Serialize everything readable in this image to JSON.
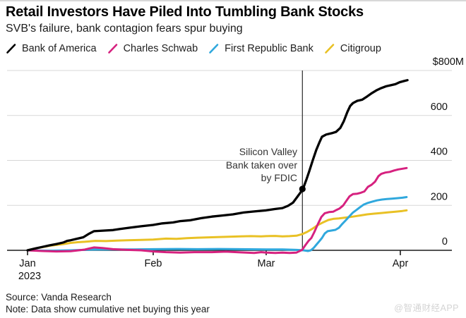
{
  "header": {
    "title": "Retail Investors Have Piled Into Tumbling Bank Stocks",
    "subtitle": "SVB's failure, bank contagion fears spur buying"
  },
  "footer": {
    "source": "Source: Vanda Research",
    "note": "Note: Data show cumulative net buying this year",
    "watermark": "@智通财经APP"
  },
  "colors": {
    "bank_of_america": "#000000",
    "charles_schwab": "#d6217f",
    "first_republic": "#30a8dd",
    "citigroup": "#e9c125",
    "gridline": "#d7d7d7",
    "axis": "#1a1a1a",
    "event_line": "#2b2b2b"
  },
  "chart_data": {
    "type": "line",
    "title": "Retail Investors Have Piled Into Tumbling Bank Stocks",
    "subtitle": "SVB's failure, bank contagion fears spur buying",
    "unit": "$M, cumulative net buying this year",
    "ylim": [
      0,
      800
    ],
    "grid": true,
    "legend_position": "top",
    "yticks": [
      {
        "value": 0,
        "label": "0"
      },
      {
        "value": 200,
        "label": "200"
      },
      {
        "value": 400,
        "label": "400"
      },
      {
        "value": 600,
        "label": "600"
      },
      {
        "value": 800,
        "label": "$800M"
      }
    ],
    "xticks": [
      {
        "t": 0,
        "label": "Jan",
        "sublabel": "2023"
      },
      {
        "t": 1,
        "label": "Feb"
      },
      {
        "t": 2,
        "label": "Mar"
      },
      {
        "t": 3,
        "label": "Apr"
      }
    ],
    "event_line": {
      "t": 2.27,
      "date": "March 10, 2023",
      "marker_value": 273,
      "label_lines": [
        "Silicon Valley",
        "Bank taken over",
        "by FDIC"
      ]
    },
    "series": [
      {
        "name": "Bank of America",
        "color": "#000000",
        "points": [
          [
            0,
            0
          ],
          [
            0.062,
            8
          ],
          [
            0.118,
            15
          ],
          [
            0.174,
            22
          ],
          [
            0.23,
            28
          ],
          [
            0.287,
            35
          ],
          [
            0.315,
            42
          ],
          [
            0.343,
            45
          ],
          [
            0.399,
            52
          ],
          [
            0.444,
            58
          ],
          [
            0.483,
            72
          ],
          [
            0.528,
            85
          ],
          [
            0.624,
            88
          ],
          [
            0.68,
            90
          ],
          [
            0.736,
            95
          ],
          [
            0.82,
            101
          ],
          [
            0.904,
            107
          ],
          [
            1,
            113
          ],
          [
            1.081,
            120
          ],
          [
            1.175,
            124
          ],
          [
            1.238,
            130
          ],
          [
            1.331,
            134
          ],
          [
            1.425,
            143
          ],
          [
            1.519,
            150
          ],
          [
            1.613,
            155
          ],
          [
            1.706,
            160
          ],
          [
            1.8,
            168
          ],
          [
            1.894,
            173
          ],
          [
            2,
            178
          ],
          [
            2.068,
            184
          ],
          [
            2.121,
            188
          ],
          [
            2.163,
            198
          ],
          [
            2.2,
            212
          ],
          [
            2.232,
            238
          ],
          [
            2.253,
            255
          ],
          [
            2.274,
            273
          ],
          [
            2.3,
            315
          ],
          [
            2.321,
            352
          ],
          [
            2.347,
            400
          ],
          [
            2.374,
            448
          ],
          [
            2.395,
            478
          ],
          [
            2.416,
            505
          ],
          [
            2.447,
            515
          ],
          [
            2.489,
            521
          ],
          [
            2.521,
            527
          ],
          [
            2.553,
            545
          ],
          [
            2.579,
            575
          ],
          [
            2.605,
            615
          ],
          [
            2.626,
            642
          ],
          [
            2.647,
            655
          ],
          [
            2.679,
            665
          ],
          [
            2.716,
            670
          ],
          [
            2.753,
            685
          ],
          [
            2.789,
            700
          ],
          [
            2.826,
            713
          ],
          [
            2.858,
            722
          ],
          [
            2.895,
            730
          ],
          [
            2.926,
            734
          ],
          [
            2.963,
            739
          ],
          [
            2.995,
            748
          ],
          [
            3.026,
            753
          ],
          [
            3.053,
            757
          ]
        ]
      },
      {
        "name": "Charles Schwab",
        "color": "#d6217f",
        "points": [
          [
            0,
            0
          ],
          [
            0.118,
            -3
          ],
          [
            0.23,
            -5
          ],
          [
            0.343,
            -4
          ],
          [
            0.455,
            3
          ],
          [
            0.528,
            13
          ],
          [
            0.596,
            10
          ],
          [
            0.68,
            5
          ],
          [
            0.792,
            2
          ],
          [
            0.904,
            0
          ],
          [
            1,
            -5
          ],
          [
            1.113,
            -8
          ],
          [
            1.238,
            -10
          ],
          [
            1.363,
            -8
          ],
          [
            1.519,
            -8
          ],
          [
            1.644,
            -6
          ],
          [
            1.769,
            -9
          ],
          [
            1.894,
            -12
          ],
          [
            1.956,
            -8
          ],
          [
            2,
            -10
          ],
          [
            2.068,
            -12
          ],
          [
            2.121,
            -10
          ],
          [
            2.174,
            -12
          ],
          [
            2.226,
            -10
          ],
          [
            2.268,
            2
          ],
          [
            2.295,
            25
          ],
          [
            2.316,
            42
          ],
          [
            2.337,
            55
          ],
          [
            2.358,
            80
          ],
          [
            2.384,
            115
          ],
          [
            2.411,
            148
          ],
          [
            2.437,
            165
          ],
          [
            2.468,
            170
          ],
          [
            2.5,
            172
          ],
          [
            2.526,
            180
          ],
          [
            2.547,
            186
          ],
          [
            2.574,
            200
          ],
          [
            2.6,
            222
          ],
          [
            2.621,
            240
          ],
          [
            2.647,
            250
          ],
          [
            2.679,
            252
          ],
          [
            2.705,
            256
          ],
          [
            2.732,
            262
          ],
          [
            2.758,
            282
          ],
          [
            2.784,
            291
          ],
          [
            2.811,
            305
          ],
          [
            2.837,
            330
          ],
          [
            2.858,
            340
          ],
          [
            2.889,
            346
          ],
          [
            2.921,
            349
          ],
          [
            2.953,
            355
          ],
          [
            2.984,
            360
          ],
          [
            3.016,
            363
          ],
          [
            3.047,
            366
          ]
        ]
      },
      {
        "name": "First Republic Bank",
        "color": "#30a8dd",
        "points": [
          [
            0,
            0
          ],
          [
            0.174,
            -2
          ],
          [
            0.343,
            0
          ],
          [
            0.511,
            3
          ],
          [
            0.68,
            4
          ],
          [
            0.848,
            4
          ],
          [
            1,
            5
          ],
          [
            1.206,
            6
          ],
          [
            1.394,
            5
          ],
          [
            1.581,
            6
          ],
          [
            1.769,
            5
          ],
          [
            2,
            4
          ],
          [
            2.121,
            4
          ],
          [
            2.226,
            2
          ],
          [
            2.279,
            0
          ],
          [
            2.311,
            -3
          ],
          [
            2.332,
            0
          ],
          [
            2.353,
            10
          ],
          [
            2.374,
            25
          ],
          [
            2.395,
            40
          ],
          [
            2.416,
            55
          ],
          [
            2.437,
            75
          ],
          [
            2.458,
            85
          ],
          [
            2.489,
            88
          ],
          [
            2.516,
            91
          ],
          [
            2.542,
            100
          ],
          [
            2.568,
            118
          ],
          [
            2.595,
            135
          ],
          [
            2.621,
            152
          ],
          [
            2.647,
            168
          ],
          [
            2.674,
            180
          ],
          [
            2.7,
            192
          ],
          [
            2.726,
            203
          ],
          [
            2.753,
            210
          ],
          [
            2.789,
            216
          ],
          [
            2.826,
            222
          ],
          [
            2.863,
            226
          ],
          [
            2.9,
            228
          ],
          [
            2.937,
            230
          ],
          [
            2.974,
            232
          ],
          [
            3.016,
            234
          ],
          [
            3.047,
            237
          ]
        ]
      },
      {
        "name": "Citigroup",
        "color": "#e9c125",
        "points": [
          [
            0,
            0
          ],
          [
            0.062,
            8
          ],
          [
            0.118,
            14
          ],
          [
            0.174,
            20
          ],
          [
            0.23,
            24
          ],
          [
            0.287,
            28
          ],
          [
            0.343,
            33
          ],
          [
            0.399,
            36
          ],
          [
            0.455,
            38
          ],
          [
            0.539,
            42
          ],
          [
            0.624,
            41
          ],
          [
            0.708,
            43
          ],
          [
            0.792,
            45
          ],
          [
            0.904,
            46
          ],
          [
            1,
            48
          ],
          [
            1.113,
            52
          ],
          [
            1.206,
            51
          ],
          [
            1.3,
            54
          ],
          [
            1.394,
            56
          ],
          [
            1.519,
            58
          ],
          [
            1.644,
            60
          ],
          [
            1.769,
            62
          ],
          [
            1.863,
            63
          ],
          [
            1.956,
            62
          ],
          [
            2,
            63
          ],
          [
            2.068,
            64
          ],
          [
            2.121,
            62
          ],
          [
            2.174,
            63
          ],
          [
            2.226,
            65
          ],
          [
            2.268,
            72
          ],
          [
            2.305,
            82
          ],
          [
            2.342,
            95
          ],
          [
            2.384,
            112
          ],
          [
            2.426,
            125
          ],
          [
            2.463,
            135
          ],
          [
            2.5,
            140
          ],
          [
            2.542,
            142
          ],
          [
            2.595,
            146
          ],
          [
            2.647,
            150
          ],
          [
            2.7,
            155
          ],
          [
            2.753,
            160
          ],
          [
            2.805,
            163
          ],
          [
            2.858,
            166
          ],
          [
            2.911,
            169
          ],
          [
            2.963,
            172
          ],
          [
            3.016,
            175
          ],
          [
            3.047,
            178
          ]
        ]
      }
    ]
  }
}
